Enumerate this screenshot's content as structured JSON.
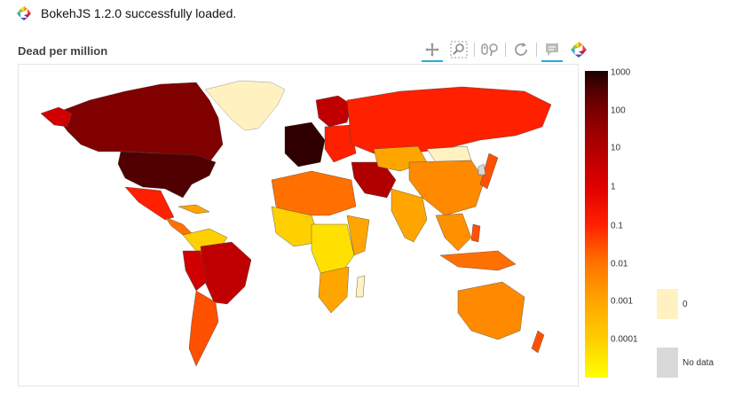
{
  "banner": {
    "text": "BokehJS 1.2.0 successfully loaded.",
    "logo_icon": "bokeh-logo-icon"
  },
  "plot": {
    "title": "Dead per million"
  },
  "toolbar": {
    "tools": [
      {
        "name": "pan-tool-icon",
        "active": true
      },
      {
        "name": "box-zoom-tool-icon",
        "active": false
      },
      {
        "name": "wheel-zoom-tool-icon",
        "active": false
      },
      {
        "name": "reset-tool-icon",
        "active": false
      },
      {
        "name": "hover-tool-icon",
        "active": true
      },
      {
        "name": "bokeh-logo-icon",
        "active": false
      }
    ]
  },
  "colorbar": {
    "ticks": [
      "1000",
      "100",
      "10",
      "1",
      "0.1",
      "0.01",
      "0.001",
      "0.0001"
    ],
    "colors": [
      "#ffff00",
      "#ffd000",
      "#ffa500",
      "#ff7000",
      "#ff2000",
      "#e00000",
      "#b00000",
      "#800000",
      "#500000",
      "#1a0000"
    ]
  },
  "legend": [
    {
      "label": "0",
      "color": "#fff2c0"
    },
    {
      "label": "No data",
      "color": "#d9d9d9"
    }
  ],
  "colors": {
    "ocean": "#ffffff",
    "tool_active": "#26aae1"
  }
}
